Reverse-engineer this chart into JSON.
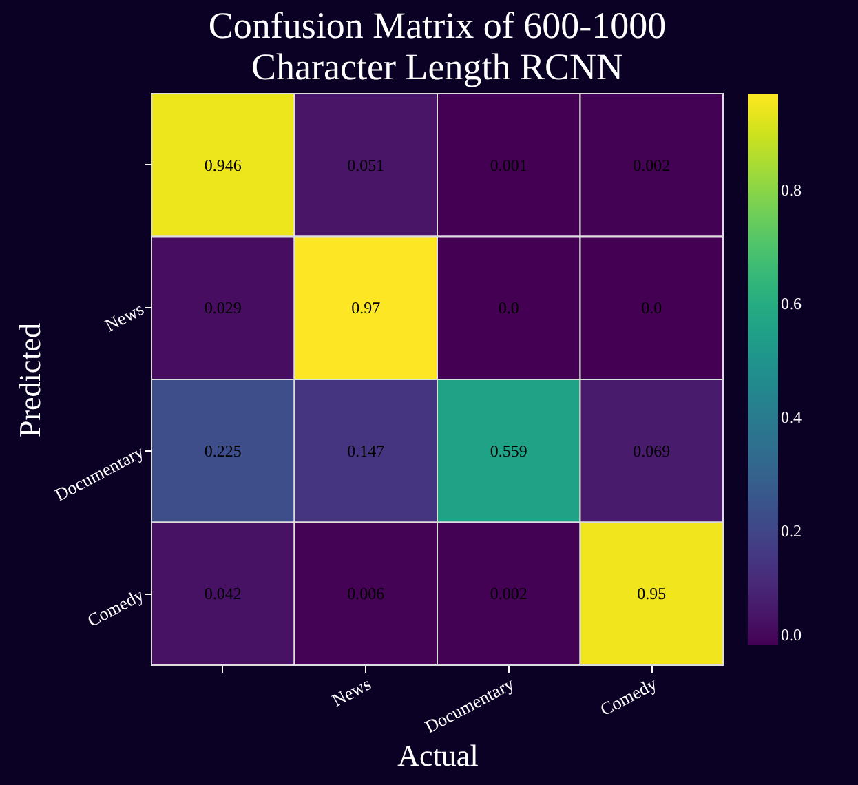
{
  "chart_data": {
    "type": "heatmap",
    "title": "Confusion Matrix of 600-1000\nCharacter Length RCNN",
    "xlabel": "Actual",
    "ylabel": "Predicted",
    "categories": [
      null,
      "News",
      "Documentary",
      "Comedy"
    ],
    "y_categories": [
      null,
      "News",
      "Documentary",
      "Comedy"
    ],
    "cells": [
      [
        0.946,
        0.051,
        0.001,
        0.002
      ],
      [
        0.029,
        0.97,
        0.0,
        0.0
      ],
      [
        0.225,
        0.147,
        0.559,
        0.069
      ],
      [
        0.042,
        0.006,
        0.002,
        0.95
      ]
    ],
    "cell_labels": [
      [
        "0.946",
        "0.051",
        "0.001",
        "0.002"
      ],
      [
        "0.029",
        "0.97",
        "0.0",
        "0.0"
      ],
      [
        "0.225",
        "0.147",
        "0.559",
        "0.069"
      ],
      [
        "0.042",
        "0.006",
        "0.002",
        "0.95"
      ]
    ],
    "clim": [
      0,
      0.97
    ],
    "cticks": [
      {
        "value": 0,
        "label": "0.0"
      },
      {
        "value": 0.2,
        "label": "0.2"
      },
      {
        "value": 0.4,
        "label": "0.4"
      },
      {
        "value": 0.6,
        "label": "0.6"
      },
      {
        "value": 0.8,
        "label": "0.8"
      }
    ]
  }
}
